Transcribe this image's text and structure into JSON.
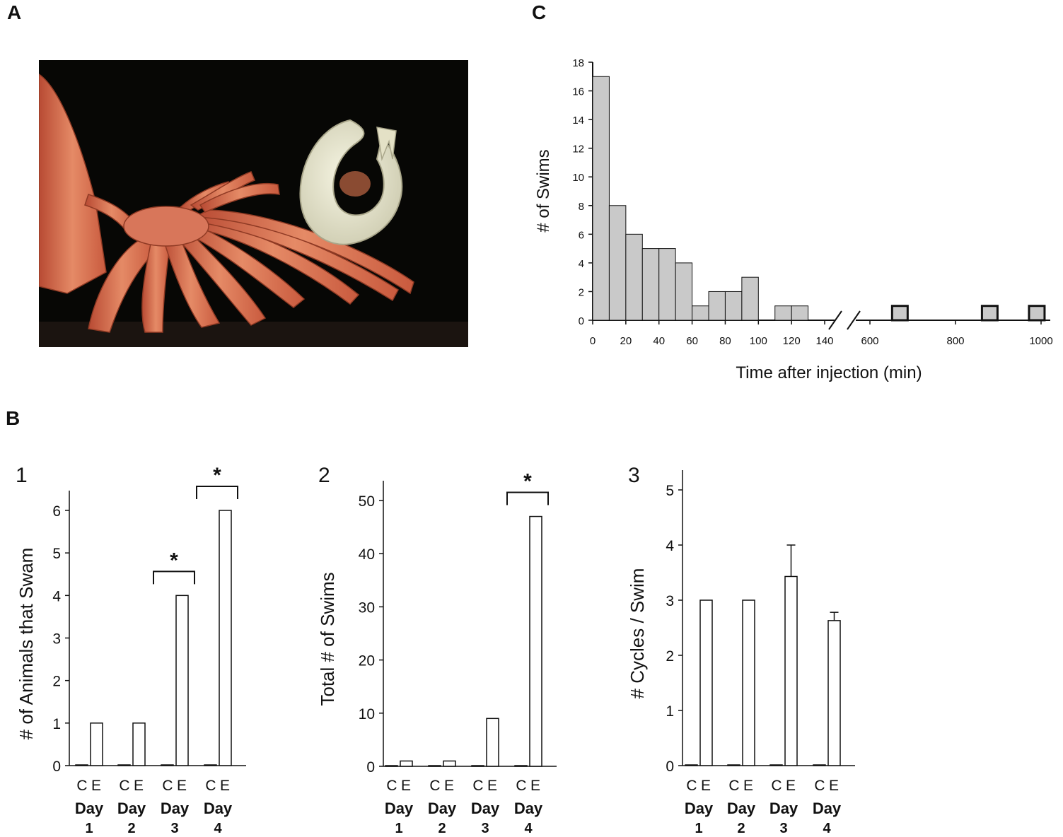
{
  "panels": {
    "A": {
      "letter": "A"
    },
    "B": {
      "letter": "B"
    },
    "C": {
      "letter": "C"
    }
  },
  "colors": {
    "hist_fill": "#c9c9c9",
    "bar_fill": "#ffffff",
    "stroke": "#111111",
    "photo_bg": "#070705",
    "star_orange": "#d4694a",
    "star_light": "#eeb89a",
    "medusa": "#e8e6cf"
  },
  "photo": {
    "subject": "sunflower sea star arms with a swimming sea slug",
    "icon": "sea-star-photo"
  },
  "chart_data": [
    {
      "id": "C",
      "type": "bar",
      "subtype": "histogram with broken x-axis",
      "xlabel": "Time after injection (min)",
      "ylabel": "# of Swims",
      "ylim": [
        0,
        18
      ],
      "yticks": [
        0,
        2,
        4,
        6,
        8,
        10,
        12,
        14,
        16,
        18
      ],
      "xticks_left": [
        0,
        20,
        40,
        60,
        80,
        100,
        120,
        140
      ],
      "xticks_right": [
        600,
        800,
        1000
      ],
      "bins": [
        {
          "start": 0,
          "end": 10,
          "count": 17
        },
        {
          "start": 10,
          "end": 20,
          "count": 8
        },
        {
          "start": 20,
          "end": 30,
          "count": 6
        },
        {
          "start": 30,
          "end": 40,
          "count": 5
        },
        {
          "start": 40,
          "end": 50,
          "count": 5
        },
        {
          "start": 50,
          "end": 60,
          "count": 4
        },
        {
          "start": 60,
          "end": 70,
          "count": 1
        },
        {
          "start": 70,
          "end": 80,
          "count": 2
        },
        {
          "start": 80,
          "end": 90,
          "count": 2
        },
        {
          "start": 90,
          "end": 100,
          "count": 3
        },
        {
          "start": 110,
          "end": 120,
          "count": 1
        },
        {
          "start": 120,
          "end": 130,
          "count": 1
        }
      ],
      "late_bins": [
        {
          "x": 670,
          "count": 1
        },
        {
          "x": 880,
          "count": 1
        },
        {
          "x": 990,
          "count": 1
        }
      ]
    },
    {
      "id": "B1",
      "type": "bar",
      "panel_number": "1",
      "ylabel": "# of Animals that Swam",
      "ylim": [
        0,
        6
      ],
      "yticks": [
        0,
        1,
        2,
        3,
        4,
        5,
        6
      ],
      "group_labels": [
        "C",
        "E"
      ],
      "day_label": "Day",
      "categories": [
        "1",
        "2",
        "3",
        "4"
      ],
      "series": [
        {
          "name": "C",
          "values": [
            0,
            0,
            0,
            0
          ]
        },
        {
          "name": "E",
          "values": [
            1,
            1,
            4,
            6
          ]
        }
      ],
      "significance": [
        "",
        "",
        "*",
        "*"
      ]
    },
    {
      "id": "B2",
      "type": "bar",
      "panel_number": "2",
      "ylabel": "Total # of Swims",
      "ylim": [
        0,
        50
      ],
      "yticks": [
        0,
        10,
        20,
        30,
        40,
        50
      ],
      "group_labels": [
        "C",
        "E"
      ],
      "day_label": "Day",
      "categories": [
        "1",
        "2",
        "3",
        "4"
      ],
      "series": [
        {
          "name": "C",
          "values": [
            0,
            0,
            0,
            0
          ]
        },
        {
          "name": "E",
          "values": [
            1,
            1,
            9,
            47
          ]
        }
      ],
      "significance": [
        "",
        "",
        "",
        "*"
      ]
    },
    {
      "id": "B3",
      "type": "bar",
      "panel_number": "3",
      "ylabel": "# Cycles / Swim",
      "ylim": [
        0,
        5
      ],
      "yticks": [
        0,
        1,
        2,
        3,
        4,
        5
      ],
      "group_labels": [
        "C",
        "E"
      ],
      "day_label": "Day",
      "categories": [
        "1",
        "2",
        "3",
        "4"
      ],
      "series": [
        {
          "name": "C",
          "values": [
            0,
            0,
            0,
            0
          ]
        },
        {
          "name": "E",
          "values": [
            3.0,
            3.0,
            3.43,
            2.63
          ],
          "error": [
            0,
            0,
            0.57,
            0.15
          ]
        }
      ],
      "significance": [
        "",
        "",
        "",
        ""
      ]
    }
  ]
}
